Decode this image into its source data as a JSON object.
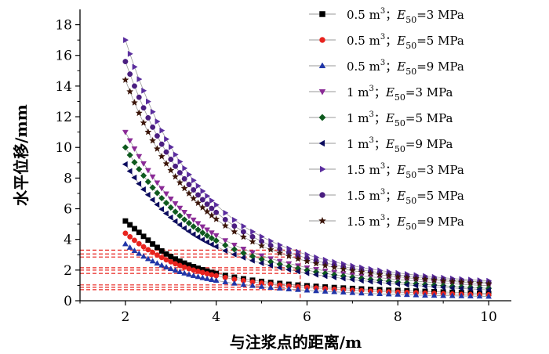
{
  "chart_data": {
    "type": "line",
    "xlabel": "与注浆点的距离/m",
    "ylabel": "水平位移/mm",
    "xlim": [
      1,
      10.5
    ],
    "ylim": [
      0,
      19
    ],
    "xticks": [
      2,
      4,
      6,
      8,
      10
    ],
    "yticks": [
      0,
      2,
      4,
      6,
      8,
      10,
      12,
      14,
      16,
      18
    ],
    "x": [
      2.0,
      2.1,
      2.2,
      2.3,
      2.4,
      2.5,
      2.6,
      2.7,
      2.8,
      2.9,
      3.0,
      3.1,
      3.2,
      3.3,
      3.4,
      3.5,
      3.6,
      3.7,
      3.8,
      3.9,
      4.0,
      4.2,
      4.4,
      4.6,
      4.8,
      5.0,
      5.2,
      5.4,
      5.6,
      5.8,
      6.0,
      6.2,
      6.4,
      6.6,
      6.8,
      7.0,
      7.2,
      7.4,
      7.6,
      7.8,
      8.0,
      8.2,
      8.4,
      8.6,
      8.8,
      9.0,
      9.2,
      9.4,
      9.6,
      9.8,
      10.0
    ],
    "series": [
      {
        "volume": "0.5",
        "modulus": "3",
        "values": [
          5.2,
          4.95,
          4.7,
          4.46,
          4.2,
          3.95,
          3.7,
          3.48,
          3.25,
          3.05,
          2.88,
          2.72,
          2.58,
          2.45,
          2.33,
          2.22,
          2.12,
          2.02,
          1.93,
          1.85,
          1.78,
          1.65,
          1.53,
          1.43,
          1.34,
          1.26,
          1.19,
          1.13,
          1.07,
          1.02,
          0.98,
          0.94,
          0.9,
          0.86,
          0.83,
          0.8,
          0.77,
          0.74,
          0.72,
          0.69,
          0.67,
          0.65,
          0.63,
          0.61,
          0.59,
          0.57,
          0.55,
          0.53,
          0.51,
          0.49,
          0.47
        ]
      },
      {
        "volume": "0.5",
        "modulus": "5",
        "values": [
          4.4,
          4.17,
          3.94,
          3.72,
          3.52,
          3.33,
          3.15,
          2.98,
          2.82,
          2.67,
          2.54,
          2.41,
          2.3,
          2.19,
          2.09,
          2.0,
          1.92,
          1.84,
          1.76,
          1.69,
          1.63,
          1.51,
          1.4,
          1.31,
          1.22,
          1.15,
          1.08,
          1.02,
          0.96,
          0.91,
          0.87,
          0.83,
          0.79,
          0.75,
          0.72,
          0.69,
          0.66,
          0.63,
          0.6,
          0.58,
          0.56,
          0.54,
          0.52,
          0.5,
          0.48,
          0.46,
          0.44,
          0.42,
          0.41,
          0.4,
          0.39
        ]
      },
      {
        "volume": "0.5",
        "modulus": "9",
        "values": [
          3.7,
          3.47,
          3.26,
          3.07,
          2.89,
          2.73,
          2.58,
          2.44,
          2.31,
          2.19,
          2.08,
          1.98,
          1.88,
          1.79,
          1.71,
          1.63,
          1.56,
          1.49,
          1.43,
          1.37,
          1.32,
          1.22,
          1.13,
          1.05,
          0.98,
          0.92,
          0.86,
          0.81,
          0.76,
          0.72,
          0.68,
          0.64,
          0.61,
          0.58,
          0.55,
          0.52,
          0.49,
          0.47,
          0.45,
          0.43,
          0.41,
          0.39,
          0.37,
          0.35,
          0.34,
          0.33,
          0.32,
          0.31,
          0.3,
          0.29,
          0.28
        ]
      },
      {
        "volume": "1",
        "modulus": "3",
        "values": [
          11.0,
          10.45,
          9.92,
          9.42,
          8.95,
          8.51,
          8.09,
          7.7,
          7.33,
          6.98,
          6.65,
          6.34,
          6.05,
          5.78,
          5.52,
          5.28,
          5.05,
          4.83,
          4.63,
          4.44,
          4.26,
          3.93,
          3.64,
          3.38,
          3.15,
          2.94,
          2.75,
          2.58,
          2.43,
          2.29,
          2.16,
          2.05,
          1.95,
          1.86,
          1.78,
          1.7,
          1.63,
          1.56,
          1.5,
          1.44,
          1.38,
          1.33,
          1.28,
          1.23,
          1.19,
          1.15,
          1.11,
          1.07,
          1.04,
          1.01,
          0.98
        ]
      },
      {
        "volume": "1",
        "modulus": "5",
        "values": [
          10.0,
          9.5,
          9.03,
          8.58,
          8.16,
          7.76,
          7.38,
          7.03,
          6.69,
          6.38,
          6.08,
          5.8,
          5.54,
          5.29,
          5.06,
          4.84,
          4.63,
          4.43,
          4.25,
          4.08,
          3.92,
          3.62,
          3.35,
          3.11,
          2.9,
          2.71,
          2.54,
          2.38,
          2.24,
          2.11,
          1.99,
          1.88,
          1.78,
          1.69,
          1.61,
          1.53,
          1.46,
          1.39,
          1.33,
          1.27,
          1.21,
          1.16,
          1.11,
          1.06,
          1.02,
          0.98,
          0.94,
          0.9,
          0.87,
          0.84,
          0.81
        ]
      },
      {
        "volume": "1",
        "modulus": "9",
        "values": [
          8.9,
          8.45,
          8.03,
          7.63,
          7.26,
          6.91,
          6.58,
          6.27,
          5.97,
          5.69,
          5.43,
          5.18,
          4.95,
          4.73,
          4.53,
          4.33,
          4.15,
          3.98,
          3.82,
          3.67,
          3.53,
          3.26,
          3.02,
          2.81,
          2.62,
          2.45,
          2.3,
          2.16,
          2.03,
          1.91,
          1.8,
          1.7,
          1.61,
          1.53,
          1.45,
          1.38,
          1.31,
          1.25,
          1.19,
          1.14,
          1.09,
          1.04,
          0.99,
          0.95,
          0.91,
          0.87,
          0.83,
          0.8,
          0.77,
          0.74,
          0.71
        ]
      },
      {
        "volume": "1.5",
        "modulus": "3",
        "values": [
          17.0,
          16.1,
          15.25,
          14.45,
          13.7,
          12.99,
          12.32,
          11.69,
          11.1,
          10.54,
          10.02,
          9.53,
          9.07,
          8.64,
          8.23,
          7.85,
          7.49,
          7.15,
          6.83,
          6.53,
          6.25,
          5.73,
          5.27,
          4.86,
          4.5,
          4.18,
          3.89,
          3.63,
          3.4,
          3.19,
          3.0,
          2.83,
          2.67,
          2.53,
          2.4,
          2.28,
          2.17,
          2.07,
          1.98,
          1.89,
          1.81,
          1.74,
          1.67,
          1.61,
          1.55,
          1.5,
          1.45,
          1.41,
          1.37,
          1.33,
          1.3
        ]
      },
      {
        "volume": "1.5",
        "modulus": "5",
        "values": [
          15.6,
          14.78,
          14.0,
          13.27,
          12.58,
          11.93,
          11.32,
          10.75,
          10.21,
          9.7,
          9.22,
          8.77,
          8.35,
          7.95,
          7.58,
          7.23,
          6.9,
          6.59,
          6.3,
          6.02,
          5.76,
          5.29,
          4.87,
          4.5,
          4.17,
          3.87,
          3.6,
          3.36,
          3.14,
          2.95,
          2.77,
          2.61,
          2.47,
          2.34,
          2.22,
          2.11,
          2.01,
          1.92,
          1.84,
          1.76,
          1.69,
          1.62,
          1.56,
          1.5,
          1.45,
          1.4,
          1.35,
          1.31,
          1.27,
          1.23,
          1.2
        ]
      },
      {
        "volume": "1.5",
        "modulus": "9",
        "values": [
          14.4,
          13.64,
          12.92,
          12.24,
          11.6,
          11.0,
          10.44,
          9.91,
          9.41,
          8.94,
          8.5,
          8.09,
          7.7,
          7.33,
          6.99,
          6.67,
          6.37,
          6.08,
          5.81,
          5.56,
          5.32,
          4.89,
          4.5,
          4.16,
          3.85,
          3.58,
          3.33,
          3.11,
          2.91,
          2.73,
          2.57,
          2.42,
          2.29,
          2.17,
          2.06,
          1.96,
          1.87,
          1.78,
          1.7,
          1.63,
          1.56,
          1.5,
          1.44,
          1.39,
          1.34,
          1.29,
          1.25,
          1.21,
          1.17,
          1.14,
          1.11
        ]
      }
    ],
    "guide_lines": {
      "x": 5.85,
      "y": [
        3.3,
        3.05,
        2.85,
        2.15,
        2.0,
        1.78,
        1.03,
        0.88,
        0.72
      ]
    },
    "legend_position": "top-right"
  },
  "colors": {
    "marker_colors": [
      "#000000",
      "#e8231e",
      "#2035a8",
      "#8a2a96",
      "#0e5a1e",
      "#0b0b5e",
      "#5a2d9e",
      "#4a1e80",
      "#3a1408"
    ],
    "line_color": "#9a9a9a",
    "guide_color": "#e8231e"
  },
  "legend": [
    {
      "prefix": "0.5 m",
      "sup": "3",
      "sep": "；",
      "e": "E",
      "sub": "50",
      "val": "=3 MPa"
    },
    {
      "prefix": "0.5 m",
      "sup": "3",
      "sep": "；",
      "e": "E",
      "sub": "50",
      "val": "=5 MPa"
    },
    {
      "prefix": "0.5 m",
      "sup": "3",
      "sep": "；",
      "e": "E",
      "sub": "50",
      "val": "=9 MPa"
    },
    {
      "prefix": "1 m",
      "sup": "3",
      "sep": "；",
      "e": "E",
      "sub": "50",
      "val": "=3 MPa"
    },
    {
      "prefix": "1 m",
      "sup": "3",
      "sep": "；",
      "e": "E",
      "sub": "50",
      "val": "=5 MPa"
    },
    {
      "prefix": "1 m",
      "sup": "3",
      "sep": "；",
      "e": "E",
      "sub": "50",
      "val": "=9 MPa"
    },
    {
      "prefix": "1.5 m",
      "sup": "3",
      "sep": "；",
      "e": "E",
      "sub": "50",
      "val": "=3 MPa"
    },
    {
      "prefix": "1.5 m",
      "sup": "3",
      "sep": "；",
      "e": "E",
      "sub": "50",
      "val": "=5 MPa"
    },
    {
      "prefix": "1.5 m",
      "sup": "3",
      "sep": "；",
      "e": "E",
      "sub": "50",
      "val": "=9 MPa"
    }
  ],
  "markers": [
    "square",
    "circle",
    "triangle-up",
    "triangle-down",
    "diamond",
    "triangle-left",
    "triangle-right",
    "circle",
    "star"
  ]
}
